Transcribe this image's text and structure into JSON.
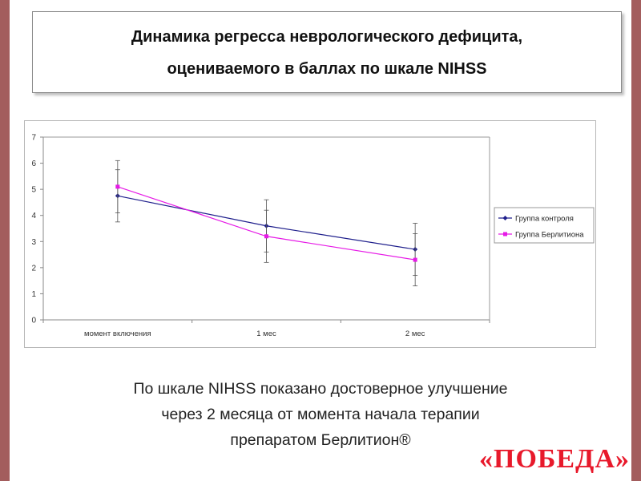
{
  "title": {
    "line1": "Динамика регресса неврологического дефицита,",
    "line2": "оцениваемого в баллах по шкале NIHSS"
  },
  "chart_data": {
    "type": "line",
    "categories": [
      "момент включения",
      "1 мес",
      "2 мес"
    ],
    "ylim": [
      0,
      7
    ],
    "yticks": [
      0,
      1,
      2,
      3,
      4,
      5,
      6,
      7
    ],
    "grid": false,
    "legend_position": "right",
    "series": [
      {
        "name": "Группа контроля",
        "color": "#1f1f8c",
        "marker": "diamond",
        "values": [
          4.75,
          3.6,
          2.7
        ],
        "error_low": [
          4.1,
          2.6,
          1.7
        ],
        "error_high": [
          5.75,
          4.6,
          3.7
        ]
      },
      {
        "name": "Группа Берлитиона",
        "color": "#e61ae6",
        "marker": "square",
        "values": [
          5.1,
          3.2,
          2.3
        ],
        "error_low": [
          3.75,
          2.2,
          1.3
        ],
        "error_high": [
          6.1,
          4.2,
          3.3
        ]
      }
    ]
  },
  "caption": {
    "line1": "По шкале NIHSS показано достоверное улучшение",
    "line2": "через 2 месяца от момента начала терапии",
    "line3": "препаратом Берлитион®"
  },
  "victory": "«ПОБЕДА»",
  "colors": {
    "side_bar": "#a35d5d",
    "victory_text": "#e8192b"
  }
}
